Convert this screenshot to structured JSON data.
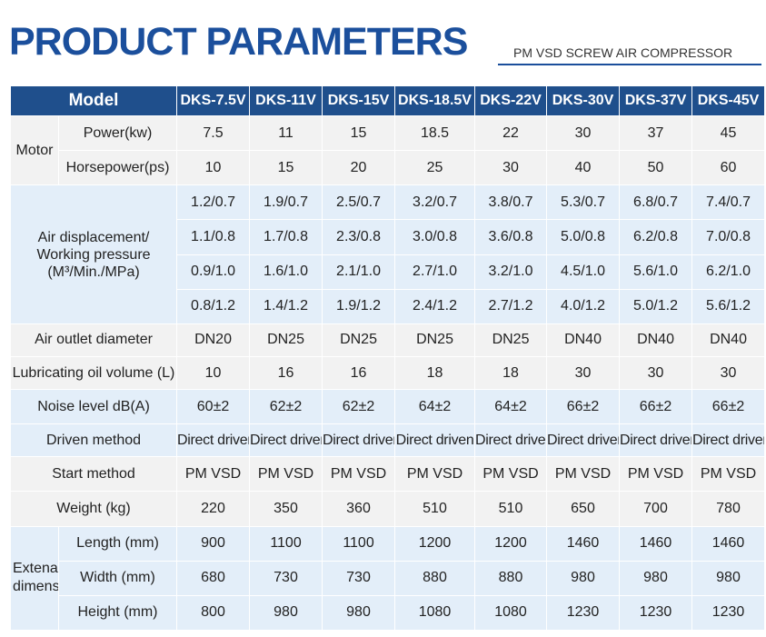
{
  "header": {
    "title": "PRODUCT PARAMETERS",
    "subtitle": "PM VSD SCREW AIR COMPRESSOR"
  },
  "table": {
    "model_label": "Model",
    "models": [
      "DKS-7.5V",
      "DKS-11V",
      "DKS-15V",
      "DKS-18.5V",
      "DKS-22V",
      "DKS-30V",
      "DKS-37V",
      "DKS-45V"
    ],
    "motor": {
      "label": "Motor",
      "power": {
        "label": "Power(kw)",
        "values": [
          "7.5",
          "11",
          "15",
          "18.5",
          "22",
          "30",
          "37",
          "45"
        ]
      },
      "horsepower": {
        "label": "Horsepower(ps)",
        "values": [
          "10",
          "15",
          "20",
          "25",
          "30",
          "40",
          "50",
          "60"
        ]
      }
    },
    "air_displacement": {
      "label_line1": "Air displacement/",
      "label_line2": "Working pressure",
      "label_line3": "(M³/Min./MPa)",
      "rows": [
        [
          "1.2/0.7",
          "1.9/0.7",
          "2.5/0.7",
          "3.2/0.7",
          "3.8/0.7",
          "5.3/0.7",
          "6.8/0.7",
          "7.4/0.7"
        ],
        [
          "1.1/0.8",
          "1.7/0.8",
          "2.3/0.8",
          "3.0/0.8",
          "3.6/0.8",
          "5.0/0.8",
          "6.2/0.8",
          "7.0/0.8"
        ],
        [
          "0.9/1.0",
          "1.6/1.0",
          "2.1/1.0",
          "2.7/1.0",
          "3.2/1.0",
          "4.5/1.0",
          "5.6/1.0",
          "6.2/1.0"
        ],
        [
          "0.8/1.2",
          "1.4/1.2",
          "1.9/1.2",
          "2.4/1.2",
          "2.7/1.2",
          "4.0/1.2",
          "5.0/1.2",
          "5.6/1.2"
        ]
      ]
    },
    "air_outlet": {
      "label": "Air outlet diameter",
      "values": [
        "DN20",
        "DN25",
        "DN25",
        "DN25",
        "DN25",
        "DN40",
        "DN40",
        "DN40"
      ]
    },
    "lube_oil": {
      "label": "Lubricating oil volume (L)",
      "values": [
        "10",
        "16",
        "16",
        "18",
        "18",
        "30",
        "30",
        "30"
      ]
    },
    "noise": {
      "label": "Noise level dB(A)",
      "values": [
        "60±2",
        "62±2",
        "62±2",
        "64±2",
        "64±2",
        "66±2",
        "66±2",
        "66±2"
      ]
    },
    "driven": {
      "label": "Driven method",
      "values": [
        "Direct driven",
        "Direct driven",
        "Direct driven",
        "Direct driven",
        "Direct driven",
        "Direct driven",
        "Direct driven",
        "Direct driven"
      ]
    },
    "start": {
      "label": "Start method",
      "values": [
        "PM VSD",
        "PM VSD",
        "PM VSD",
        "PM VSD",
        "PM VSD",
        "PM VSD",
        "PM VSD",
        "PM VSD"
      ]
    },
    "weight": {
      "label": "Weight (kg)",
      "values": [
        "220",
        "350",
        "360",
        "510",
        "510",
        "650",
        "700",
        "780"
      ]
    },
    "dimensions": {
      "label_line1": "Extenal",
      "label_line2": "dimensions",
      "length": {
        "label": "Length (mm)",
        "values": [
          "900",
          "1100",
          "1100",
          "1200",
          "1200",
          "1460",
          "1460",
          "1460"
        ]
      },
      "width": {
        "label": "Width (mm)",
        "values": [
          "680",
          "730",
          "730",
          "880",
          "880",
          "980",
          "980",
          "980"
        ]
      },
      "height": {
        "label": "Height (mm)",
        "values": [
          "800",
          "980",
          "980",
          "1080",
          "1080",
          "1230",
          "1230",
          "1230"
        ]
      }
    }
  },
  "colors": {
    "title_blue": "#1b4f9c",
    "header_bg": "#1f4f8c",
    "row_gray": "#f2f2f2",
    "row_blue": "#e3eef9"
  }
}
